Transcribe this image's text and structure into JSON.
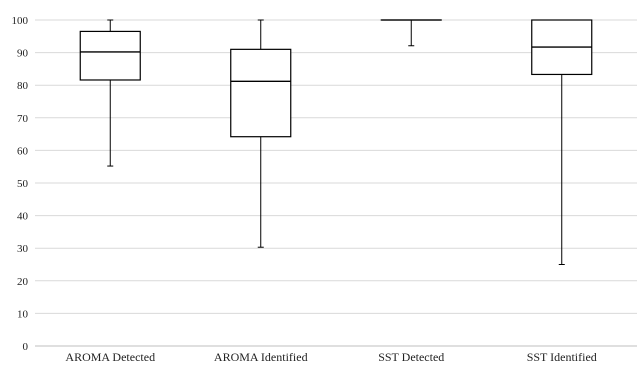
{
  "chart_data": {
    "type": "boxplot",
    "title": "",
    "xlabel": "",
    "ylabel": "",
    "ylim": [
      0,
      100
    ],
    "y_ticks": [
      0,
      10,
      20,
      30,
      40,
      50,
      60,
      70,
      80,
      90,
      100
    ],
    "grid": "horizontal",
    "legend": "none",
    "categories": [
      "AROMA Detected",
      "AROMA Identified",
      "SST Detected",
      "SST Identified"
    ],
    "boxes": [
      {
        "category": "AROMA Detected",
        "min": 55.2,
        "q1": 81.6,
        "median": 90.2,
        "q3": 96.5,
        "max": 100
      },
      {
        "category": "AROMA Identified",
        "min": 30.3,
        "q1": 64.2,
        "median": 81.2,
        "q3": 91.0,
        "max": 100
      },
      {
        "category": "SST Detected",
        "min": 92.1,
        "q1": 100,
        "median": 100,
        "q3": 100,
        "max": 100
      },
      {
        "category": "SST Identified",
        "min": 25.0,
        "q1": 83.3,
        "median": 91.7,
        "q3": 100,
        "max": 100
      }
    ],
    "colors": {
      "box_fill": "#ffffff",
      "stroke": "#000000",
      "grid": "#d9d9d9",
      "text": "#222222"
    }
  }
}
